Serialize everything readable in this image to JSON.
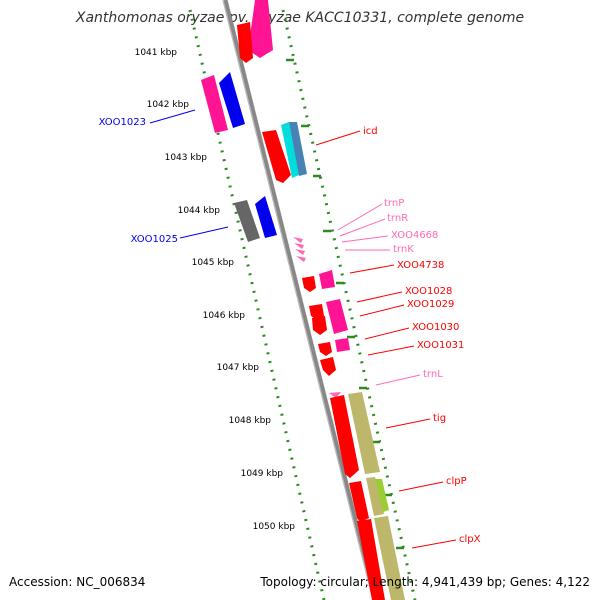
{
  "title": "Xanthomonas oryzae pv. oryzae KACC10331, complete genome",
  "footer": {
    "accession": "Accession: NC_006834",
    "summary": "Topology: circular; Length: 4,941,439 bp; Genes: 4,122"
  },
  "ticks": [
    "1041 kbp",
    "1042 kbp",
    "1043 kbp",
    "1044 kbp",
    "1045 kbp",
    "1046 kbp",
    "1047 kbp",
    "1048 kbp",
    "1049 kbp",
    "1050 kbp"
  ],
  "colors": {
    "backbone": "#888888",
    "tick_dots": "#2e8b22",
    "red": "#ff0000",
    "magenta": "#ff1493",
    "blue": "#0000ee",
    "gray": "#666666",
    "cyan": "#00dddd",
    "steel": "#4682b4",
    "khaki": "#bdb76b",
    "lime": "#9acd32",
    "pink": "#ff69b4"
  },
  "features": [
    {
      "label": "XOO1023",
      "color": "blue"
    },
    {
      "label": "XOO1025",
      "color": "blue"
    },
    {
      "label": "icd",
      "color": "red"
    },
    {
      "label": "trnP",
      "color": "pink"
    },
    {
      "label": "trnR",
      "color": "pink"
    },
    {
      "label": "XOO4668",
      "color": "pink"
    },
    {
      "label": "trnK",
      "color": "pink"
    },
    {
      "label": "XOO4738",
      "color": "red"
    },
    {
      "label": "XOO1028",
      "color": "red"
    },
    {
      "label": "XOO1029",
      "color": "red"
    },
    {
      "label": "XOO1030",
      "color": "red"
    },
    {
      "label": "XOO1031",
      "color": "red"
    },
    {
      "label": "trnL",
      "color": "pink"
    },
    {
      "label": "tig",
      "color": "red"
    },
    {
      "label": "clpP",
      "color": "red"
    },
    {
      "label": "clpX",
      "color": "red"
    }
  ]
}
